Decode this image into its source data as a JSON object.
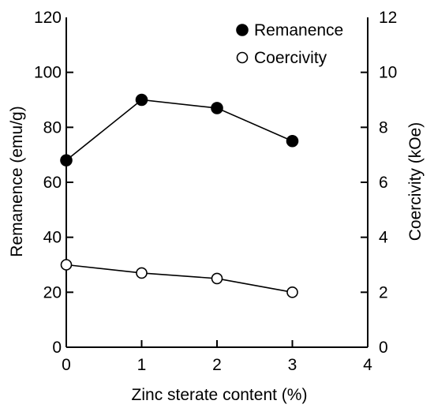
{
  "chart_data": {
    "type": "line",
    "title": "",
    "xlabel": "Zinc sterate content (%)",
    "ylabel_left": "Remanence (emu/g)",
    "ylabel_right": "Coercivity (kOe)",
    "xlim": [
      0,
      4
    ],
    "ylim_left": [
      0,
      120
    ],
    "ylim_right": [
      0,
      12
    ],
    "x_ticks": [
      "0",
      "1",
      "2",
      "3",
      "4"
    ],
    "y_left_ticks": [
      "0",
      "20",
      "40",
      "60",
      "80",
      "100",
      "120"
    ],
    "y_right_ticks": [
      "0",
      "2",
      "4",
      "6",
      "8",
      "10",
      "12"
    ],
    "grid": false,
    "legend_position": "top-right",
    "series": [
      {
        "name": "Remanence",
        "axis": "left",
        "marker": "filled-circle",
        "x": [
          0,
          1,
          2,
          3
        ],
        "values": [
          68,
          90,
          87,
          75
        ]
      },
      {
        "name": "Coercivity",
        "axis": "right",
        "marker": "open-circle",
        "x": [
          0,
          1,
          2,
          3
        ],
        "values": [
          3.0,
          2.7,
          2.5,
          2.0
        ]
      }
    ]
  }
}
